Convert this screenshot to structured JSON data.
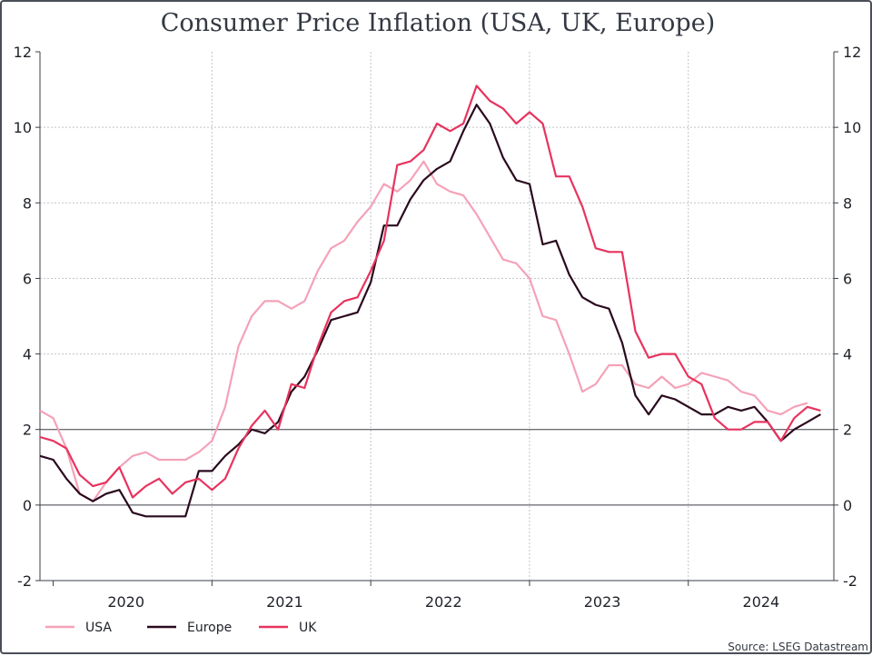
{
  "chart_data": {
    "type": "line",
    "title": "Consumer Price Inflation (USA, UK, Europe)",
    "source": "Source: LSEG Datastream",
    "ylim": [
      -2,
      12
    ],
    "yticks": [
      "-2",
      "0",
      "2",
      "4",
      "6",
      "8",
      "10",
      "12"
    ],
    "xlim": [
      "2019-12",
      "2024-12"
    ],
    "xtick_labels": [
      "2020",
      "2021",
      "2022",
      "2023",
      "2024"
    ],
    "reference_lines": [
      0,
      2
    ],
    "grid": true,
    "dual_y_axis": true,
    "legend_position": "bottom-left",
    "series": [
      {
        "name": "USA",
        "color": "#f4a2b8",
        "start": "2019-12",
        "values": [
          2.5,
          2.3,
          1.5,
          0.3,
          0.1,
          0.6,
          1.0,
          1.3,
          1.4,
          1.2,
          1.2,
          1.2,
          1.4,
          1.7,
          2.6,
          4.2,
          5.0,
          5.4,
          5.4,
          5.2,
          5.4,
          6.2,
          6.8,
          7.0,
          7.5,
          7.9,
          8.5,
          8.3,
          8.6,
          9.1,
          8.5,
          8.3,
          8.2,
          7.7,
          7.1,
          6.5,
          6.4,
          6.0,
          5.0,
          4.9,
          4.0,
          3.0,
          3.2,
          3.7,
          3.7,
          3.2,
          3.1,
          3.4,
          3.1,
          3.2,
          3.5,
          3.4,
          3.3,
          3.0,
          2.9,
          2.5,
          2.4,
          2.6,
          2.7
        ]
      },
      {
        "name": "Europe",
        "color": "#2a0a1e",
        "start": "2019-12",
        "values": [
          1.3,
          1.2,
          0.7,
          0.3,
          0.1,
          0.3,
          0.4,
          -0.2,
          -0.3,
          -0.3,
          -0.3,
          -0.3,
          0.9,
          0.9,
          1.3,
          1.6,
          2.0,
          1.9,
          2.2,
          3.0,
          3.4,
          4.1,
          4.9,
          5.0,
          5.1,
          5.9,
          7.4,
          7.4,
          8.1,
          8.6,
          8.9,
          9.1,
          9.9,
          10.6,
          10.1,
          9.2,
          8.6,
          8.5,
          6.9,
          7.0,
          6.1,
          5.5,
          5.3,
          5.2,
          4.3,
          2.9,
          2.4,
          2.9,
          2.8,
          2.6,
          2.4,
          2.4,
          2.6,
          2.5,
          2.6,
          2.2,
          1.7,
          2.0,
          2.2,
          2.4
        ]
      },
      {
        "name": "UK",
        "color": "#e8335e",
        "start": "2019-12",
        "values": [
          1.8,
          1.7,
          1.5,
          0.8,
          0.5,
          0.6,
          1.0,
          0.2,
          0.5,
          0.7,
          0.3,
          0.6,
          0.7,
          0.4,
          0.7,
          1.5,
          2.1,
          2.5,
          2.0,
          3.2,
          3.1,
          4.2,
          5.1,
          5.4,
          5.5,
          6.2,
          7.0,
          9.0,
          9.1,
          9.4,
          10.1,
          9.9,
          10.1,
          11.1,
          10.7,
          10.5,
          10.1,
          10.4,
          10.1,
          8.7,
          8.7,
          7.9,
          6.8,
          6.7,
          6.7,
          4.6,
          3.9,
          4.0,
          4.0,
          3.4,
          3.2,
          2.3,
          2.0,
          2.0,
          2.2,
          2.2,
          1.7,
          2.3,
          2.6,
          2.5
        ]
      }
    ]
  }
}
